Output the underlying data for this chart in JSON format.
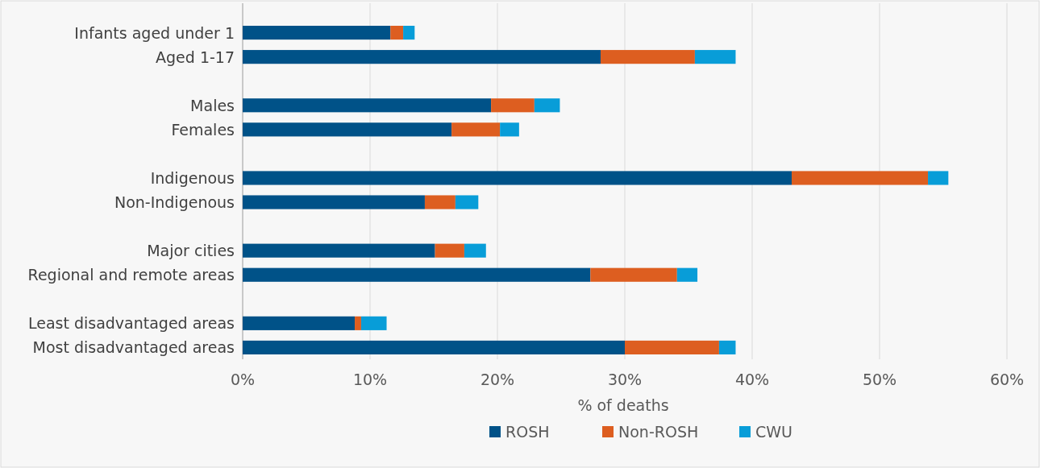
{
  "chart_data": {
    "type": "bar",
    "orientation": "horizontal",
    "stacked": true,
    "xlabel": "% of deaths",
    "categories": [
      "Infants aged under 1",
      "Aged 1-17",
      null,
      "Males",
      "Females",
      null,
      "Indigenous",
      "Non-Indigenous",
      null,
      "Major cities",
      "Regional and remote areas",
      null,
      "Least disadvantaged areas",
      "Most disadvantaged areas"
    ],
    "series": [
      {
        "name": "ROSH",
        "color": "#005288",
        "values": [
          11.6,
          28.1,
          null,
          19.5,
          16.4,
          null,
          43.1,
          14.3,
          null,
          15.1,
          27.3,
          null,
          8.8,
          30.0
        ]
      },
      {
        "name": "Non-ROSH",
        "color": "#dd5e20",
        "values": [
          1.0,
          7.4,
          null,
          3.4,
          3.8,
          null,
          10.7,
          2.4,
          null,
          2.3,
          6.8,
          null,
          0.5,
          7.4
        ]
      },
      {
        "name": "CWU",
        "color": "#089dd8",
        "values": [
          0.9,
          3.2,
          null,
          2.0,
          1.5,
          null,
          1.6,
          1.8,
          null,
          1.7,
          1.6,
          null,
          2.0,
          1.3
        ]
      }
    ],
    "xlim": [
      0,
      60
    ],
    "xticks": [
      {
        "value": 0,
        "label": "0%"
      },
      {
        "value": 10,
        "label": "10%"
      },
      {
        "value": 20,
        "label": "20%"
      },
      {
        "value": 30,
        "label": "30%"
      },
      {
        "value": 40,
        "label": "40%"
      },
      {
        "value": 50,
        "label": "50%"
      },
      {
        "value": 60,
        "label": "60%"
      }
    ],
    "grid": "x",
    "legend": "bottom"
  }
}
